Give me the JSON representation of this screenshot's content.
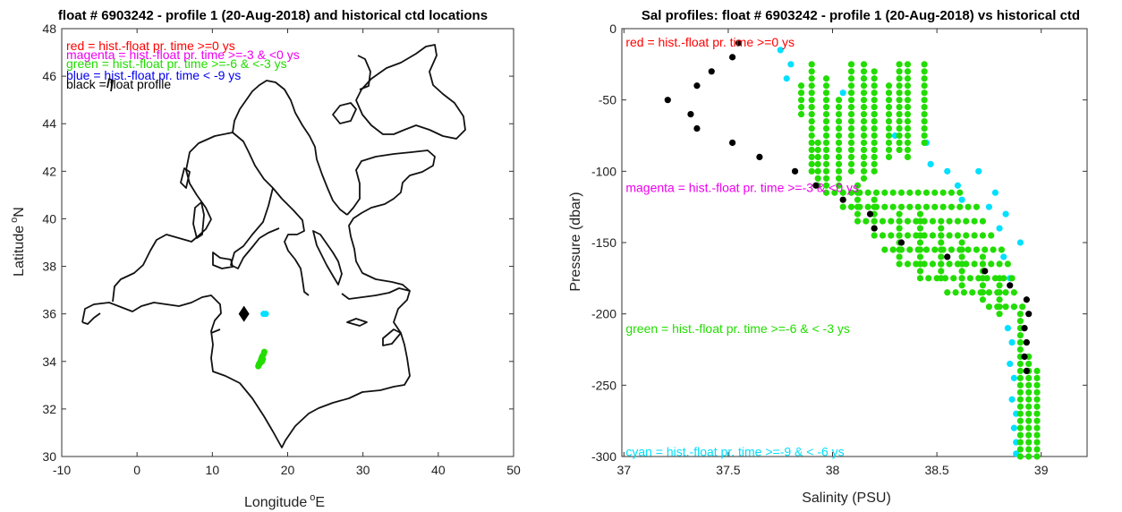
{
  "chart_data": [
    {
      "type": "scatter",
      "title": "float # 6903242 - profile 1 (20-Aug-2018) and historical ctd locations",
      "xlabel": "Longitude",
      "xlabel_sup": "o",
      "xlabel_unit": "E",
      "ylabel": "Latitude",
      "ylabel_sup": "o",
      "ylabel_unit": "N",
      "xlim": [
        -10,
        50
      ],
      "ylim": [
        30,
        48
      ],
      "xticks": [
        -10,
        0,
        10,
        20,
        30,
        40,
        50
      ],
      "yticks": [
        30,
        32,
        34,
        36,
        38,
        40,
        42,
        44,
        46,
        48
      ],
      "legend": [
        {
          "text": "red = hist.-float pr. time >=0 ys",
          "color": "#ff0000"
        },
        {
          "text": "magenta = hist.-float pr. time >=-3 & <0 ys",
          "color": "#ee00ee"
        },
        {
          "text": "green = hist.-float pr. time >=-6 & <-3 ys",
          "color": "#22dd00"
        },
        {
          "text": "blue = hist.-float pr. time < -9 ys",
          "color": "#0000ee"
        },
        {
          "text": "black = float profile",
          "color": "#000000"
        }
      ],
      "series": [
        {
          "color": "#000000",
          "marker": "diamond",
          "points": [
            [
              14.2,
              36.0
            ]
          ]
        },
        {
          "color": "#22dd00",
          "marker": "circle",
          "points": [
            [
              16.9,
              34.4
            ],
            [
              16.8,
              34.3
            ],
            [
              16.6,
              34.2
            ],
            [
              16.5,
              34.1
            ],
            [
              16.4,
              34.0
            ],
            [
              16.3,
              33.9
            ],
            [
              16.2,
              33.9
            ],
            [
              16.1,
              33.8
            ],
            [
              16.6,
              34.0
            ],
            [
              16.7,
              34.1
            ]
          ]
        },
        {
          "color": "#00e0ff",
          "marker": "circle",
          "points": [
            [
              16.8,
              36.0
            ],
            [
              17.1,
              36.0
            ]
          ]
        }
      ]
    },
    {
      "type": "scatter",
      "title": "Sal profiles: float # 6903242 - profile 1 (20-Aug-2018) vs historical ctd",
      "xlabel": "Salinity (PSU)",
      "ylabel": "Pressure (dbar)",
      "xlim": [
        36.99,
        39.22
      ],
      "ylim": [
        -300,
        0
      ],
      "xticks": [
        37,
        37.5,
        38,
        38.5,
        39
      ],
      "ytick_labels": [
        "0",
        "-50",
        "-100",
        "-150",
        "-200",
        "-250",
        "-300"
      ],
      "annotations": [
        {
          "text": "red = hist.-float pr. time >=0 ys",
          "color": "#ff0000",
          "x": 37.0,
          "y": -5
        },
        {
          "text": "magenta = hist.-float pr. time >=-3 & <0 ys",
          "color": "#ee00ee",
          "x": 37.0,
          "y": -107
        },
        {
          "text": "green = hist.-float pr. time >=-6 & < -3 ys",
          "color": "#22dd00",
          "x": 37.0,
          "y": -206
        },
        {
          "text": "cyan = hist.-float pr. time >=-9 & < -6 ys",
          "color": "#00e0ff",
          "x": 37.0,
          "y": -292
        }
      ],
      "float_profile": {
        "color": "#000000",
        "points": [
          [
            37.55,
            -10
          ],
          [
            37.52,
            -20
          ],
          [
            37.42,
            -30
          ],
          [
            37.35,
            -40
          ],
          [
            37.21,
            -50
          ],
          [
            37.32,
            -60
          ],
          [
            37.35,
            -70
          ],
          [
            37.52,
            -80
          ],
          [
            37.65,
            -90
          ],
          [
            37.82,
            -100
          ],
          [
            37.92,
            -110
          ],
          [
            38.05,
            -120
          ],
          [
            38.18,
            -130
          ],
          [
            38.2,
            -140
          ],
          [
            38.33,
            -150
          ],
          [
            38.55,
            -160
          ],
          [
            38.73,
            -170
          ],
          [
            38.85,
            -180
          ],
          [
            38.93,
            -190
          ],
          [
            38.94,
            -200
          ],
          [
            38.92,
            -210
          ],
          [
            38.93,
            -220
          ],
          [
            38.92,
            -230
          ],
          [
            38.93,
            -240
          ]
        ]
      },
      "green_points": {
        "color": "#22dd00",
        "columns": [
          {
            "x": 37.9,
            "y_from": -25,
            "y_to": -100,
            "step": 5
          },
          {
            "x": 37.97,
            "y_from": -35,
            "y_to": -110,
            "step": 5
          },
          {
            "x": 38.03,
            "y_from": -50,
            "y_to": -110,
            "step": 5
          },
          {
            "x": 38.09,
            "y_from": -25,
            "y_to": -100,
            "step": 5
          },
          {
            "x": 38.15,
            "y_from": -25,
            "y_to": -105,
            "step": 5
          },
          {
            "x": 38.2,
            "y_from": -30,
            "y_to": -100,
            "step": 5
          },
          {
            "x": 38.27,
            "y_from": -40,
            "y_to": -90,
            "step": 5
          },
          {
            "x": 38.32,
            "y_from": -25,
            "y_to": -85,
            "step": 5
          },
          {
            "x": 38.36,
            "y_from": -25,
            "y_to": -90,
            "step": 5
          },
          {
            "x": 38.44,
            "y_from": -25,
            "y_to": -80,
            "step": 5
          },
          {
            "x": 37.85,
            "y_from": -40,
            "y_to": -60,
            "step": 5
          },
          {
            "x": 37.93,
            "y_from": -80,
            "y_to": -110,
            "step": 5
          },
          {
            "x": 38.12,
            "y_from": -110,
            "y_to": -130,
            "step": 5
          },
          {
            "x": 38.2,
            "y_from": -120,
            "y_to": -140,
            "step": 5
          },
          {
            "x": 38.32,
            "y_from": -130,
            "y_to": -160,
            "step": 5
          },
          {
            "x": 38.42,
            "y_from": -130,
            "y_to": -170,
            "step": 5
          },
          {
            "x": 38.52,
            "y_from": -140,
            "y_to": -175,
            "step": 5
          },
          {
            "x": 38.62,
            "y_from": -150,
            "y_to": -180,
            "step": 5
          },
          {
            "x": 38.72,
            "y_from": -160,
            "y_to": -190,
            "step": 5
          },
          {
            "x": 38.8,
            "y_from": -175,
            "y_to": -200,
            "step": 5
          },
          {
            "x": 38.9,
            "y_from": -200,
            "y_to": -300,
            "step": 5
          },
          {
            "x": 38.94,
            "y_from": -230,
            "y_to": -300,
            "step": 5
          },
          {
            "x": 38.98,
            "y_from": -240,
            "y_to": -300,
            "step": 5
          }
        ],
        "bands": [
          {
            "y": -115,
            "x_from": 37.97,
            "x_to": 38.62
          },
          {
            "y": -125,
            "x_from": 38.05,
            "x_to": 38.7
          },
          {
            "y": -135,
            "x_from": 38.12,
            "x_to": 38.74
          },
          {
            "y": -145,
            "x_from": 38.2,
            "x_to": 38.78
          },
          {
            "y": -155,
            "x_from": 38.25,
            "x_to": 38.84
          },
          {
            "y": -165,
            "x_from": 38.32,
            "x_to": 38.84
          },
          {
            "y": -175,
            "x_from": 38.42,
            "x_to": 38.88
          },
          {
            "y": -185,
            "x_from": 38.55,
            "x_to": 38.9
          },
          {
            "y": -195,
            "x_from": 38.75,
            "x_to": 38.92
          }
        ]
      },
      "cyan_points": {
        "color": "#00e0ff",
        "points": [
          [
            37.75,
            -15
          ],
          [
            37.8,
            -25
          ],
          [
            37.78,
            -35
          ],
          [
            38.05,
            -45
          ],
          [
            38.15,
            -35
          ],
          [
            38.2,
            -60
          ],
          [
            38.3,
            -75
          ],
          [
            38.45,
            -80
          ],
          [
            38.47,
            -95
          ],
          [
            38.55,
            -100
          ],
          [
            38.6,
            -110
          ],
          [
            38.62,
            -120
          ],
          [
            38.7,
            -100
          ],
          [
            38.75,
            -125
          ],
          [
            38.8,
            -140
          ],
          [
            38.82,
            -160
          ],
          [
            38.85,
            -175
          ],
          [
            38.87,
            -195
          ],
          [
            38.86,
            -220
          ],
          [
            38.87,
            -245
          ],
          [
            38.88,
            -270
          ],
          [
            38.88,
            -290
          ],
          [
            38.83,
            -130
          ],
          [
            38.78,
            -115
          ],
          [
            38.9,
            -150
          ],
          [
            38.84,
            -210
          ],
          [
            38.85,
            -235
          ],
          [
            38.86,
            -260
          ],
          [
            38.87,
            -280
          ],
          [
            38.88,
            -298
          ]
        ]
      }
    }
  ]
}
